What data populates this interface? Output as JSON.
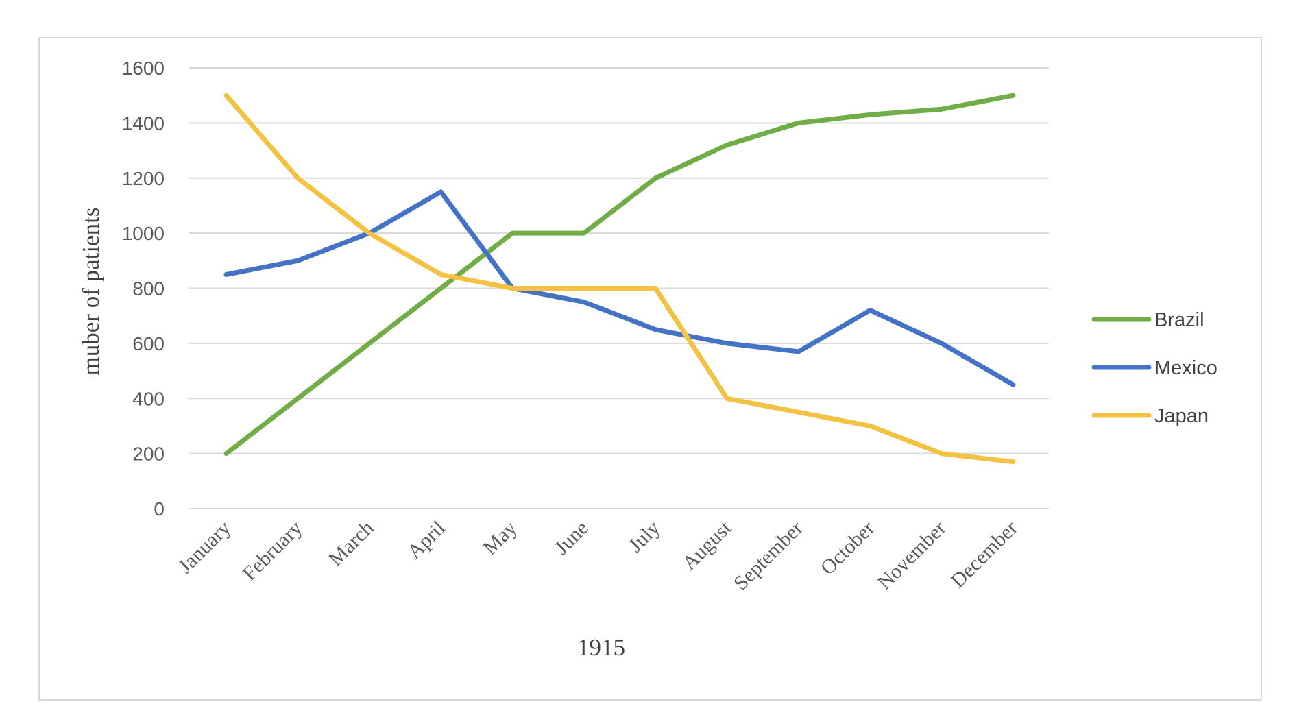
{
  "chart_data": {
    "type": "line",
    "title": "",
    "xlabel": "1915",
    "ylabel": "muber of patients",
    "ylim": [
      0,
      1600
    ],
    "yticks": [
      "0",
      "200",
      "400",
      "600",
      "800",
      "1000",
      "1200",
      "1400",
      "1600"
    ],
    "grid": true,
    "legend_position": "right",
    "categories": [
      "January",
      "February",
      "March",
      "April",
      "May",
      "June",
      "July",
      "August",
      "September",
      "October",
      "November",
      "December"
    ],
    "series": [
      {
        "name": "Brazil",
        "color": "#70ad47",
        "values": [
          200,
          400,
          600,
          800,
          1000,
          1000,
          1200,
          1320,
          1400,
          1430,
          1450,
          1500
        ]
      },
      {
        "name": "Mexico",
        "color": "#4472c4",
        "values": [
          850,
          900,
          1000,
          1150,
          800,
          750,
          650,
          600,
          570,
          720,
          600,
          450
        ]
      },
      {
        "name": "Japan",
        "color": "#f4c243",
        "values": [
          1500,
          1200,
          1000,
          850,
          800,
          800,
          800,
          400,
          350,
          300,
          200,
          170
        ]
      }
    ]
  }
}
